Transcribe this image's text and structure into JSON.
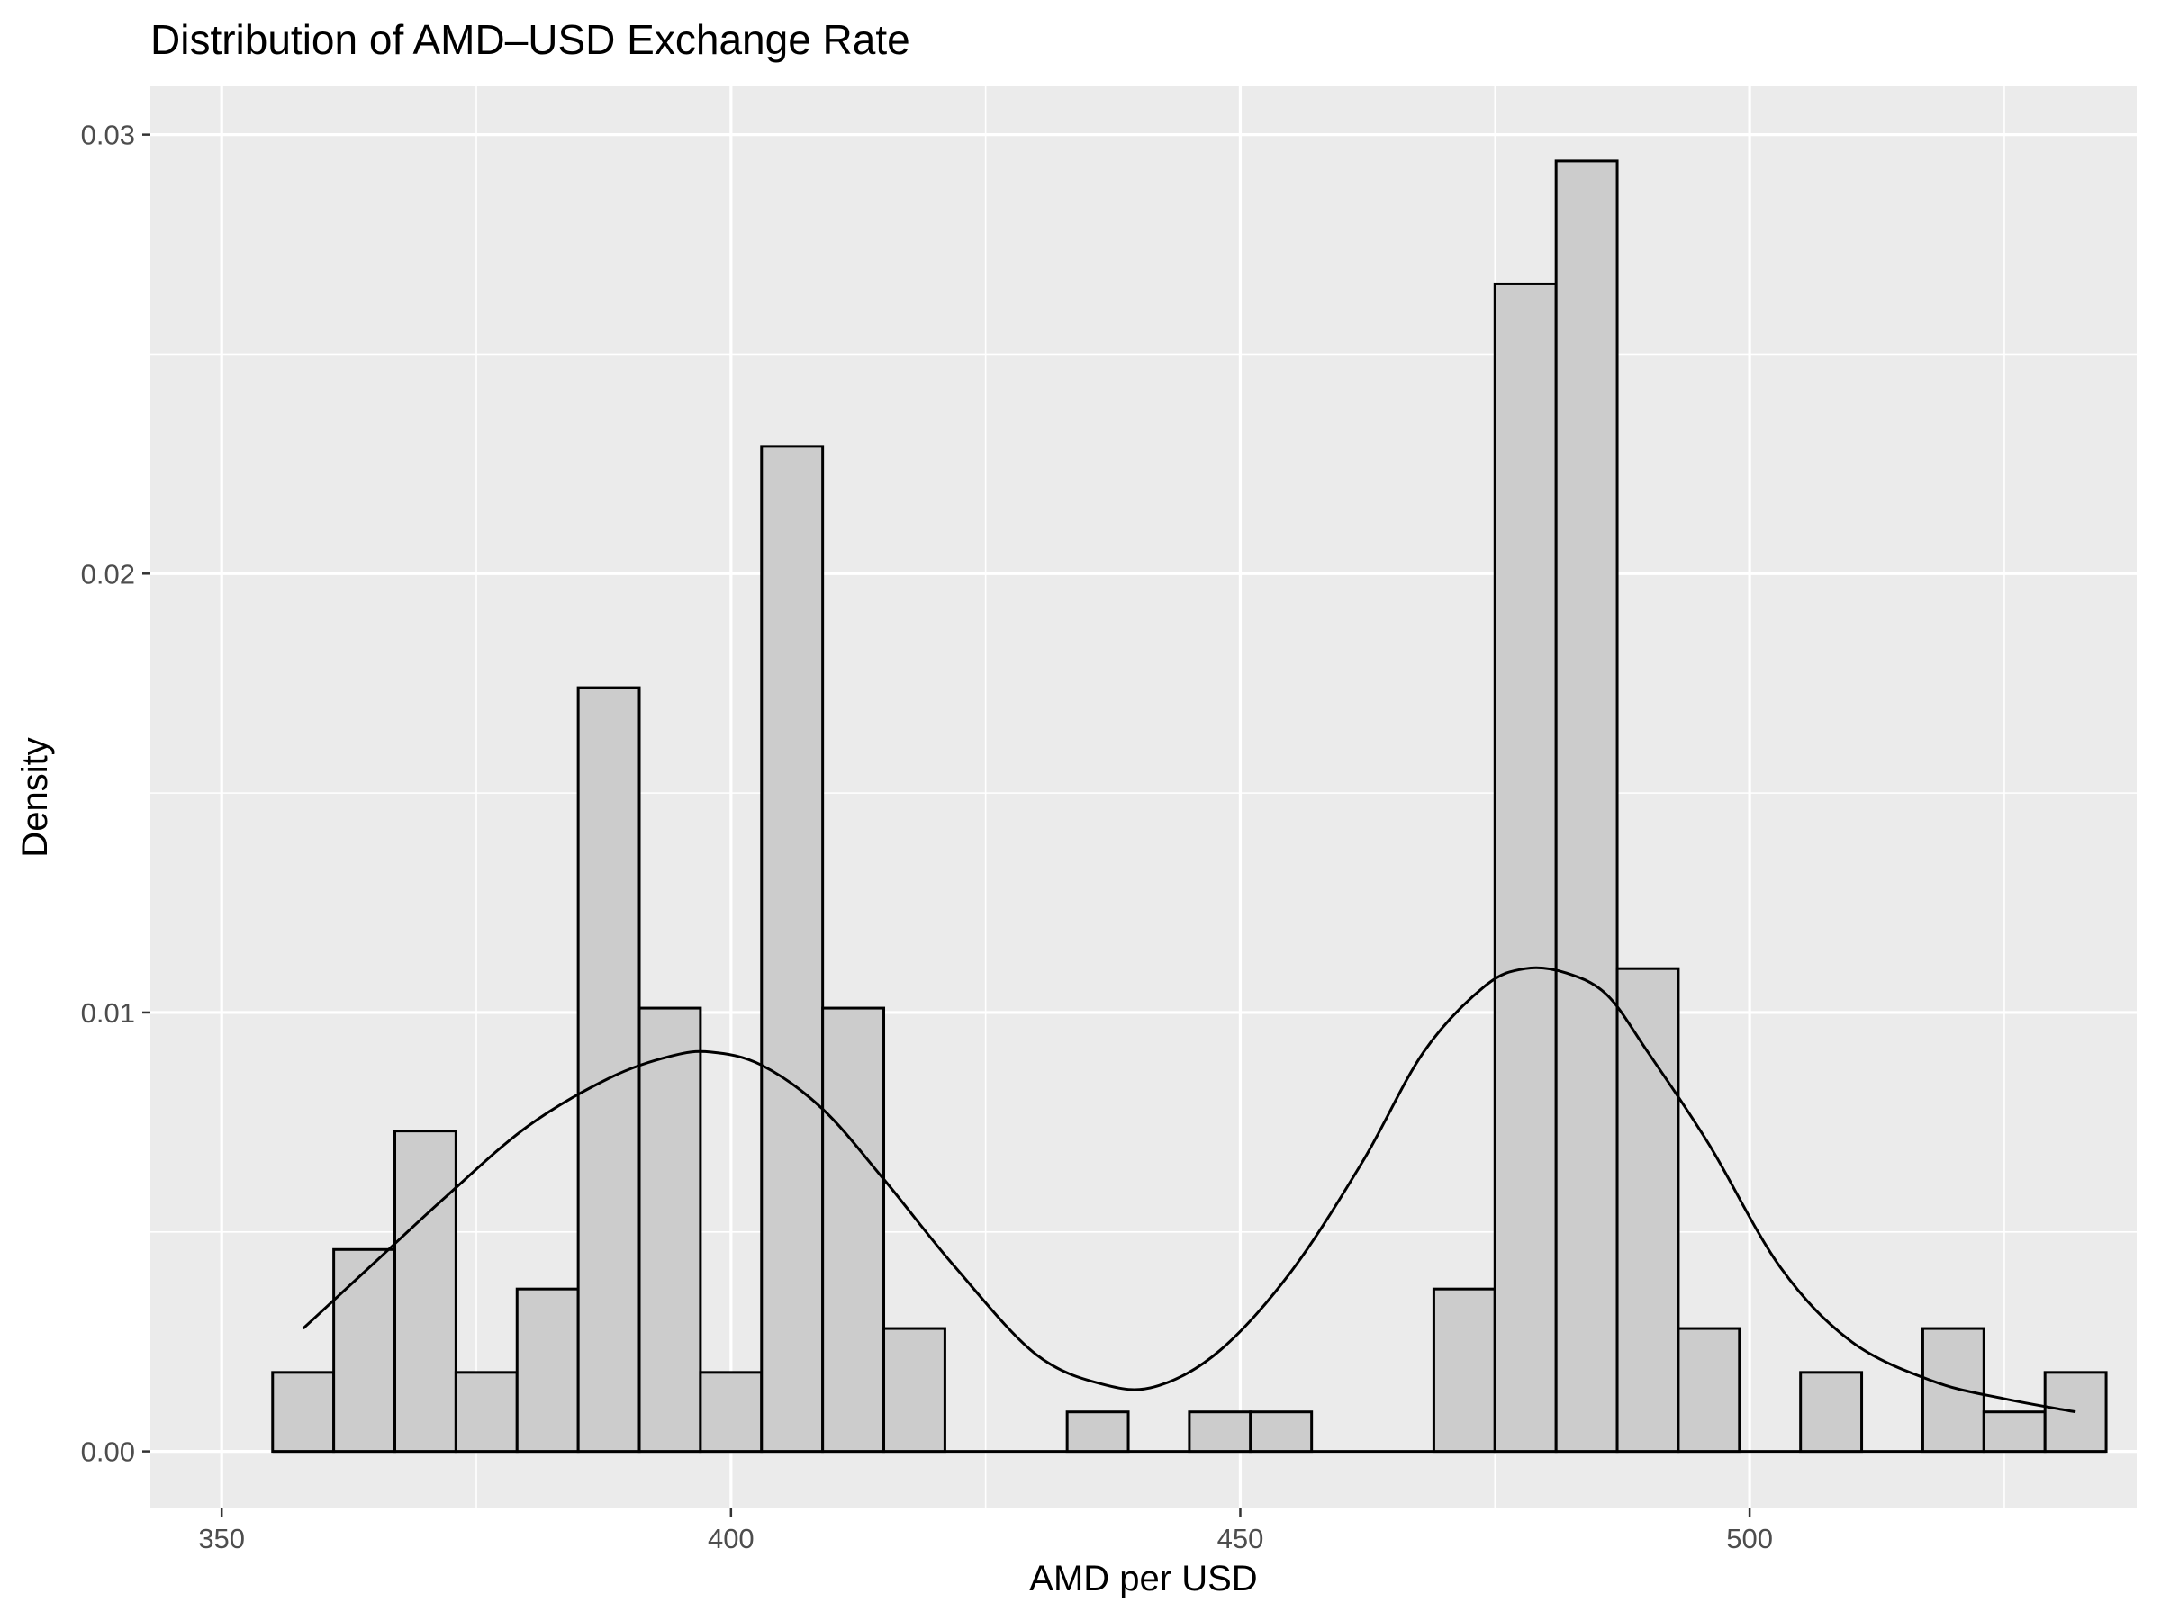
{
  "chart_data": {
    "type": "bar",
    "subtype": "histogram-with-density-curve",
    "title": "Distribution of AMD–USD Exchange Rate",
    "xlabel": "AMD per USD",
    "ylabel": "Density",
    "xlim": [
      343,
      538
    ],
    "ylim": [
      -0.0013,
      0.0311
    ],
    "x_ticks": [
      350,
      400,
      450,
      500
    ],
    "x_tick_labels": [
      "350",
      "400",
      "450",
      "500"
    ],
    "y_ticks": [
      0.0,
      0.01,
      0.02,
      0.03
    ],
    "y_tick_labels": [
      "0.00",
      "0.01",
      "0.02",
      "0.03"
    ],
    "grid": true,
    "bin_width": 6,
    "bins": [
      {
        "x0": 355,
        "x1": 361,
        "density": 0.0018
      },
      {
        "x0": 361,
        "x1": 367,
        "density": 0.0046
      },
      {
        "x0": 367,
        "x1": 373,
        "density": 0.0073
      },
      {
        "x0": 373,
        "x1": 379,
        "density": 0.0018
      },
      {
        "x0": 379,
        "x1": 385,
        "density": 0.0037
      },
      {
        "x0": 385,
        "x1": 391,
        "density": 0.0174
      },
      {
        "x0": 391,
        "x1": 397,
        "density": 0.0101
      },
      {
        "x0": 397,
        "x1": 403,
        "density": 0.0018
      },
      {
        "x0": 403,
        "x1": 409,
        "density": 0.0229
      },
      {
        "x0": 409,
        "x1": 415,
        "density": 0.0101
      },
      {
        "x0": 415,
        "x1": 421,
        "density": 0.0028
      },
      {
        "x0": 433,
        "x1": 439,
        "density": 0.0009
      },
      {
        "x0": 445,
        "x1": 451,
        "density": 0.0009
      },
      {
        "x0": 451,
        "x1": 457,
        "density": 0.0009
      },
      {
        "x0": 469,
        "x1": 475,
        "density": 0.0037
      },
      {
        "x0": 475,
        "x1": 481,
        "density": 0.0266
      },
      {
        "x0": 481,
        "x1": 487,
        "density": 0.0294
      },
      {
        "x0": 487,
        "x1": 493,
        "density": 0.011
      },
      {
        "x0": 493,
        "x1": 499,
        "density": 0.0028
      },
      {
        "x0": 505,
        "x1": 511,
        "density": 0.0018
      },
      {
        "x0": 517,
        "x1": 523,
        "density": 0.0028
      },
      {
        "x0": 523,
        "x1": 529,
        "density": 0.0009
      },
      {
        "x0": 529,
        "x1": 535,
        "density": 0.0018
      }
    ],
    "density_curve": {
      "x": [
        358,
        365,
        372,
        380,
        388,
        394,
        398,
        403,
        409,
        415,
        422,
        430,
        437,
        442,
        448,
        455,
        462,
        468,
        474,
        478,
        482,
        486,
        490,
        496,
        503,
        510,
        518,
        525,
        532
      ],
      "y": [
        0.0028,
        0.0043,
        0.0058,
        0.0074,
        0.0085,
        0.009,
        0.0091,
        0.0088,
        0.0078,
        0.0062,
        0.0042,
        0.0022,
        0.0015,
        0.0015,
        0.0023,
        0.0041,
        0.0066,
        0.0091,
        0.0106,
        0.011,
        0.0109,
        0.0104,
        0.0091,
        0.007,
        0.0042,
        0.0025,
        0.0016,
        0.0012,
        0.0009
      ]
    },
    "colors": {
      "panel_background": "#ebebeb",
      "grid_line": "#ffffff",
      "bar_fill": "#cccccc",
      "bar_outline": "#000000",
      "curve": "#000000",
      "tick_label": "#4d4d4d",
      "tick_mark": "#333333"
    }
  }
}
